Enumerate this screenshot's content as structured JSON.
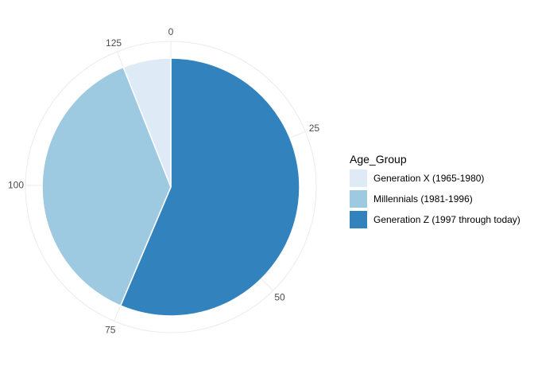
{
  "chart_data": {
    "type": "pie",
    "categories": [
      "Generation X (1965-1980)",
      "Millennials (1981-1996)",
      "Generation Z (1997 through today)"
    ],
    "values": [
      8,
      50,
      75
    ],
    "colors": [
      "#deebf7",
      "#9ecae1",
      "#3182bd"
    ],
    "theta_axis": {
      "range": [
        0,
        133
      ],
      "ticks": [
        0,
        25,
        50,
        75,
        100,
        125
      ],
      "tick_labels": [
        "0",
        "25",
        "50",
        "75",
        "100",
        "125"
      ]
    },
    "grid": true,
    "legend": {
      "title": "Age_Group",
      "position": "right"
    }
  }
}
